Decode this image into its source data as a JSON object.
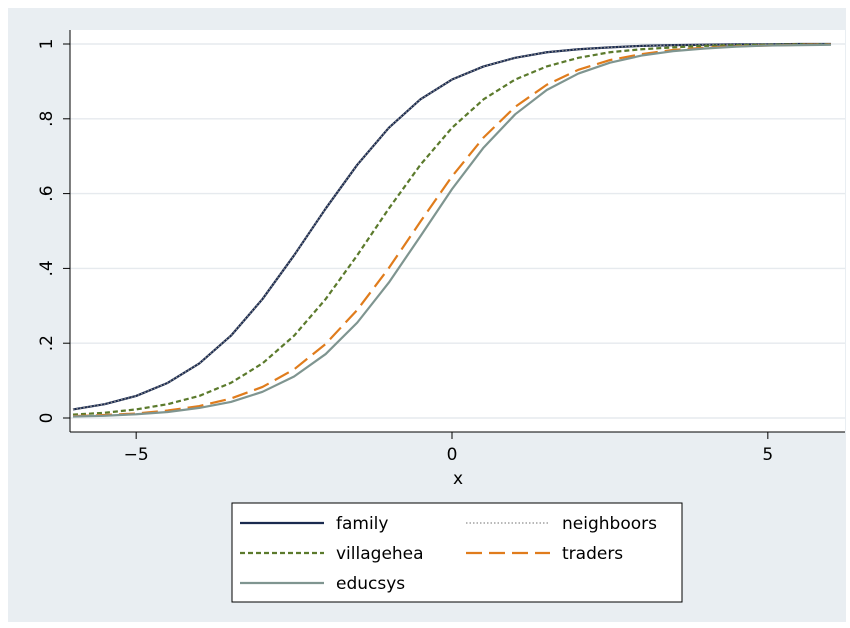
{
  "chart_data": {
    "type": "line",
    "title": "",
    "xlabel": "x",
    "ylabel": "",
    "xlim": [
      -6,
      6
    ],
    "ylim": [
      0,
      1
    ],
    "x_ticks": [
      -5,
      0,
      5
    ],
    "x_tick_labels": [
      "−5",
      "0",
      "5"
    ],
    "y_ticks": [
      0,
      0.2,
      0.4,
      0.6,
      0.8,
      1
    ],
    "y_tick_labels": [
      "0",
      ".2",
      ".4",
      ".6",
      ".8",
      "1"
    ],
    "grid": "horizontal",
    "legend_position": "bottom",
    "x": [
      -6,
      -5.5,
      -5,
      -4.5,
      -4,
      -3.5,
      -3,
      -2.5,
      -2,
      -1.5,
      -1,
      -0.5,
      0,
      0.5,
      1,
      1.5,
      2,
      2.5,
      3,
      3.5,
      4,
      4.5,
      5,
      5.5,
      6
    ],
    "series": [
      {
        "name": "family",
        "values": [
          0.023,
          0.037,
          0.059,
          0.094,
          0.146,
          0.22,
          0.318,
          0.435,
          0.56,
          0.677,
          0.776,
          0.852,
          0.905,
          0.94,
          0.963,
          0.978,
          0.986,
          0.991,
          0.995,
          0.997,
          0.998,
          0.999,
          0.999,
          1.0,
          1.0
        ],
        "color": "#1a2a4f",
        "dash": "solid"
      },
      {
        "name": "neighboors",
        "values": [
          0.023,
          0.037,
          0.059,
          0.094,
          0.146,
          0.22,
          0.318,
          0.435,
          0.56,
          0.677,
          0.776,
          0.852,
          0.905,
          0.94,
          0.963,
          0.978,
          0.986,
          0.991,
          0.995,
          0.997,
          0.998,
          0.999,
          0.999,
          1.0,
          1.0
        ],
        "color": "#8e8e8e",
        "dash": "dotted"
      },
      {
        "name": "villagehea",
        "values": [
          0.009,
          0.014,
          0.023,
          0.037,
          0.059,
          0.094,
          0.146,
          0.22,
          0.318,
          0.435,
          0.56,
          0.677,
          0.776,
          0.852,
          0.905,
          0.94,
          0.963,
          0.978,
          0.986,
          0.991,
          0.995,
          0.997,
          0.998,
          0.999,
          0.999
        ],
        "color": "#5b7a2c",
        "dash": "short"
      },
      {
        "name": "traders",
        "values": [
          0.005,
          0.008,
          0.012,
          0.02,
          0.032,
          0.052,
          0.083,
          0.13,
          0.198,
          0.289,
          0.401,
          0.525,
          0.646,
          0.75,
          0.832,
          0.891,
          0.931,
          0.957,
          0.973,
          0.984,
          0.99,
          0.994,
          0.996,
          0.998,
          0.999
        ],
        "color": "#e07c1c",
        "dash": "long"
      },
      {
        "name": "educsys",
        "values": [
          0.004,
          0.006,
          0.01,
          0.016,
          0.027,
          0.043,
          0.07,
          0.111,
          0.171,
          0.255,
          0.362,
          0.486,
          0.612,
          0.723,
          0.812,
          0.877,
          0.921,
          0.95,
          0.969,
          0.981,
          0.988,
          0.993,
          0.996,
          0.997,
          0.998
        ],
        "color": "#7f9590",
        "dash": "solid"
      }
    ]
  }
}
